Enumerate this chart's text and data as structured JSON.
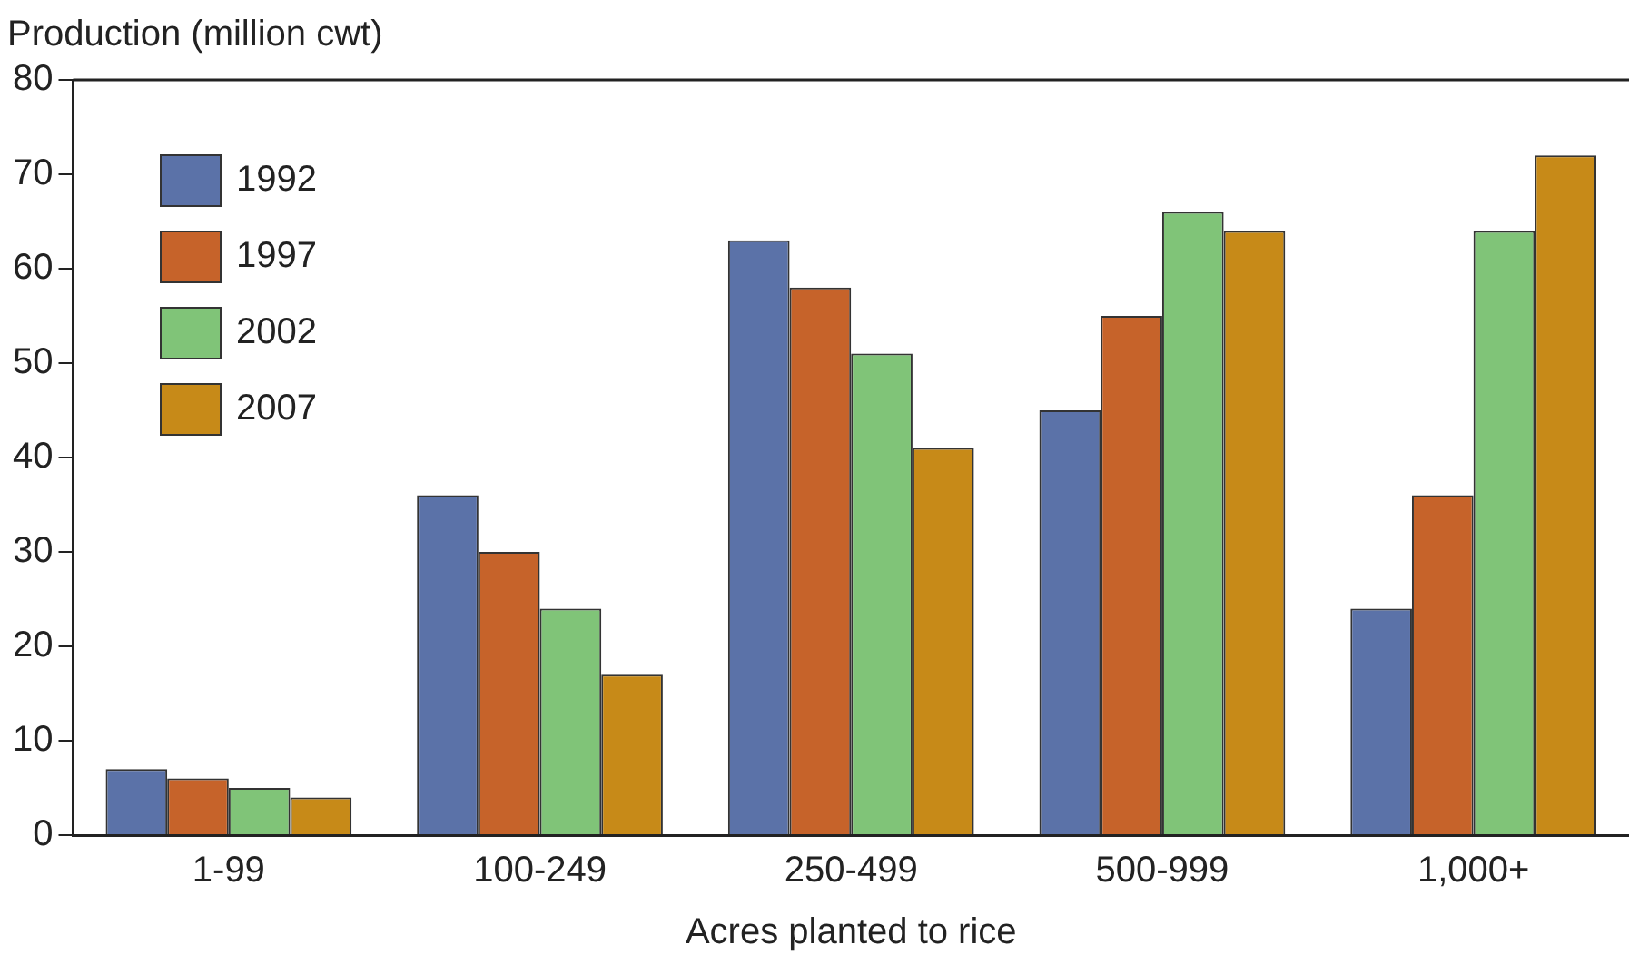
{
  "chart_data": {
    "type": "bar",
    "xlabel": "Acres planted to rice",
    "ylabel": "Production (million cwt)",
    "categories": [
      "1-99",
      "100-249",
      "250-499",
      "500-999",
      "1,000+"
    ],
    "series": [
      {
        "name": "1992",
        "color": "#5b72a8",
        "values": [
          7,
          36,
          63,
          45,
          24
        ]
      },
      {
        "name": "1997",
        "color": "#c6632a",
        "values": [
          6,
          30,
          58,
          55,
          36
        ]
      },
      {
        "name": "2002",
        "color": "#80c478",
        "values": [
          5,
          24,
          51,
          66,
          64
        ]
      },
      {
        "name": "2007",
        "color": "#c78a18",
        "values": [
          4,
          17,
          41,
          64,
          72
        ]
      }
    ],
    "ylim": [
      0,
      80
    ],
    "yticks": [
      0,
      10,
      20,
      30,
      40,
      50,
      60,
      70,
      80
    ],
    "grid": false,
    "legend": "top left"
  }
}
